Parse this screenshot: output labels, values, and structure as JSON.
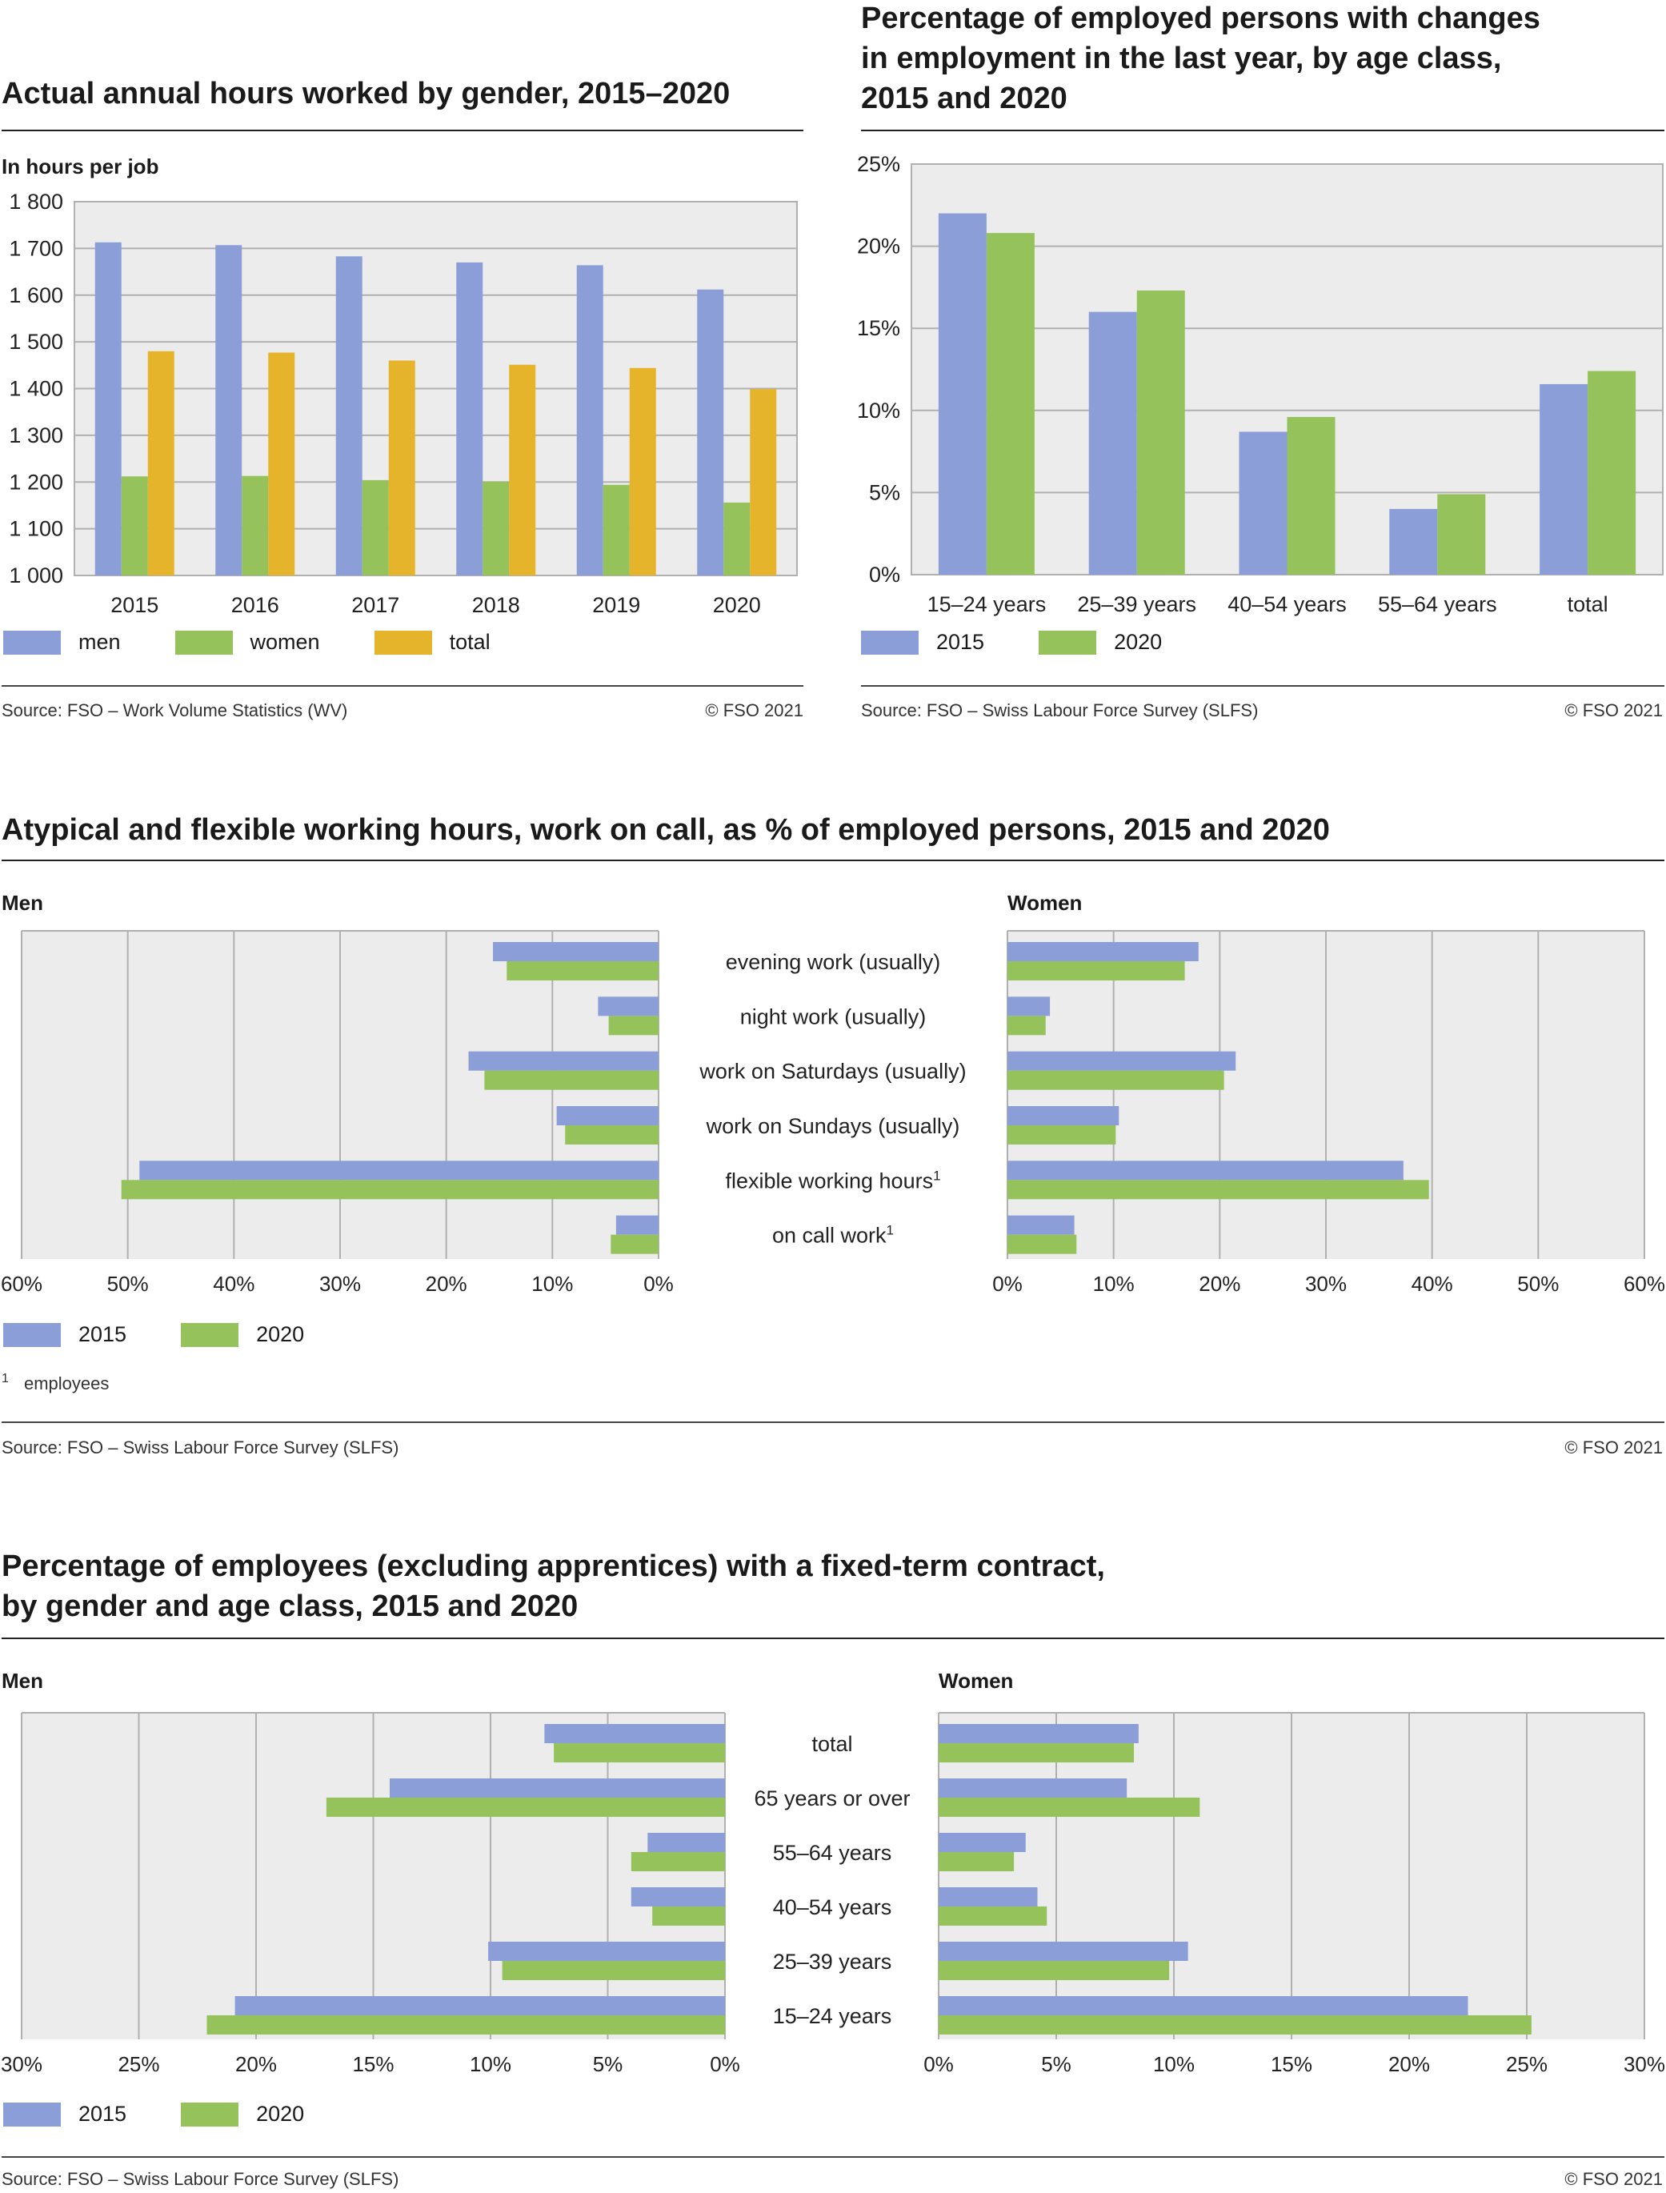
{
  "colors": {
    "men": "#8b9ed8",
    "women": "#95c25b",
    "total": "#e5b42a",
    "y2015": "#8b9ed8",
    "y2020": "#95c25b",
    "plot_bg": "#ececec",
    "grid": "#b0b0b0"
  },
  "copyright": "© FSO 2021",
  "chart1": {
    "title": "Actual annual hours worked by gender, 2015–2020",
    "unit": "In hours per job",
    "source": "Source: FSO – Work Volume Statistics (WV)",
    "legend": [
      "men",
      "women",
      "total"
    ]
  },
  "chart2": {
    "title": "Percentage of employed persons with changes\nin employment in the last year, by age class,\n2015 and 2020",
    "source": "Source: FSO – Swiss Labour Force Survey (SLFS)",
    "legend": [
      "2015",
      "2020"
    ]
  },
  "chart3": {
    "title": "Atypical and flexible working hours, work on call, as % of employed persons, 2015 and 2020",
    "men_label": "Men",
    "women_label": "Women",
    "footnote_mark": "1",
    "footnote_text": "employees",
    "source": "Source: FSO – Swiss Labour Force Survey (SLFS)",
    "legend": [
      "2015",
      "2020"
    ]
  },
  "chart4": {
    "title": "Percentage of employees (excluding apprentices) with a fixed-term contract,\nby gender and age class, 2015 and 2020",
    "men_label": "Men",
    "women_label": "Women",
    "source": "Source: FSO – Swiss Labour Force Survey (SLFS)",
    "legend": [
      "2015",
      "2020"
    ]
  },
  "chart_data": [
    {
      "id": "c1",
      "type": "bar",
      "title": "Actual annual hours worked by gender, 2015–2020",
      "ylabel": "In hours per job",
      "categories": [
        "2015",
        "2016",
        "2017",
        "2018",
        "2019",
        "2020"
      ],
      "series": [
        {
          "name": "men",
          "values": [
            1713,
            1707,
            1683,
            1670,
            1664,
            1612
          ]
        },
        {
          "name": "women",
          "values": [
            1212,
            1213,
            1204,
            1201,
            1194,
            1156
          ]
        },
        {
          "name": "total",
          "values": [
            1480,
            1477,
            1460,
            1451,
            1444,
            1399
          ]
        }
      ],
      "ylim": [
        1000,
        1800
      ],
      "yticks": [
        1000,
        1100,
        1200,
        1300,
        1400,
        1500,
        1600,
        1700,
        1800
      ],
      "ytick_labels": [
        "1 000",
        "1 100",
        "1 200",
        "1 300",
        "1 400",
        "1 500",
        "1 600",
        "1 700",
        "1 800"
      ],
      "grid": true,
      "legend": "bottom"
    },
    {
      "id": "c2",
      "type": "bar",
      "title": "Percentage of employed persons with changes in employment in the last year, by age class, 2015 and 2020",
      "categories": [
        "15–24 years",
        "25–39 years",
        "40–54 years",
        "55–64 years",
        "total"
      ],
      "series": [
        {
          "name": "2015",
          "values": [
            22.0,
            16.0,
            8.7,
            4.0,
            11.6
          ]
        },
        {
          "name": "2020",
          "values": [
            20.8,
            17.3,
            9.6,
            4.9,
            12.4
          ]
        }
      ],
      "ylim": [
        0,
        25
      ],
      "yticks": [
        0,
        5,
        10,
        15,
        20,
        25
      ],
      "ytick_labels": [
        "0%",
        "5%",
        "10%",
        "15%",
        "20%",
        "25%"
      ],
      "grid": true,
      "legend": "bottom"
    },
    {
      "id": "c3",
      "type": "bar",
      "orientation": "horizontal",
      "title": "Atypical and flexible working hours, work on call, as % of employed persons, 2015 and 2020",
      "categories": [
        "evening work (usually)",
        "night work (usually)",
        "work on Saturdays (usually)",
        "work on Sundays (usually)",
        "flexible working hours¹",
        "on call work¹"
      ],
      "panels": [
        {
          "name": "Men",
          "series": [
            {
              "name": "2015",
              "values": [
                15.6,
                5.7,
                17.9,
                9.6,
                48.9,
                4.0
              ]
            },
            {
              "name": "2020",
              "values": [
                14.3,
                4.7,
                16.4,
                8.8,
                50.6,
                4.5
              ]
            }
          ]
        },
        {
          "name": "Women",
          "series": [
            {
              "name": "2015",
              "values": [
                18.0,
                4.0,
                21.5,
                10.5,
                37.3,
                6.3
              ]
            },
            {
              "name": "2020",
              "values": [
                16.7,
                3.6,
                20.4,
                10.2,
                39.7,
                6.5
              ]
            }
          ]
        }
      ],
      "xlim": [
        0,
        60
      ],
      "xticks": [
        0,
        10,
        20,
        30,
        40,
        50,
        60
      ],
      "xtick_labels": [
        "0%",
        "10%",
        "20%",
        "30%",
        "40%",
        "50%",
        "60%"
      ],
      "grid": true,
      "legend": "bottom"
    },
    {
      "id": "c4",
      "type": "bar",
      "orientation": "horizontal",
      "title": "Percentage of employees (excluding apprentices) with a fixed-term contract, by gender and age class, 2015 and 2020",
      "categories": [
        "total",
        "65 years or over",
        "55–64 years",
        "40–54 years",
        "25–39 years",
        "15–24 years"
      ],
      "panels": [
        {
          "name": "Men",
          "series": [
            {
              "name": "2015",
              "values": [
                7.7,
                14.3,
                3.3,
                4.0,
                10.1,
                20.9
              ]
            },
            {
              "name": "2020",
              "values": [
                7.3,
                17.0,
                4.0,
                3.1,
                9.5,
                22.1
              ]
            }
          ]
        },
        {
          "name": "Women",
          "series": [
            {
              "name": "2015",
              "values": [
                8.5,
                8.0,
                3.7,
                4.2,
                10.6,
                22.5
              ]
            },
            {
              "name": "2020",
              "values": [
                8.3,
                11.1,
                3.2,
                4.6,
                9.8,
                25.2
              ]
            }
          ]
        }
      ],
      "xlim": [
        0,
        30
      ],
      "xticks": [
        0,
        5,
        10,
        15,
        20,
        25,
        30
      ],
      "xtick_labels": [
        "0%",
        "5%",
        "10%",
        "15%",
        "20%",
        "25%",
        "30%"
      ],
      "grid": true,
      "legend": "bottom"
    }
  ]
}
